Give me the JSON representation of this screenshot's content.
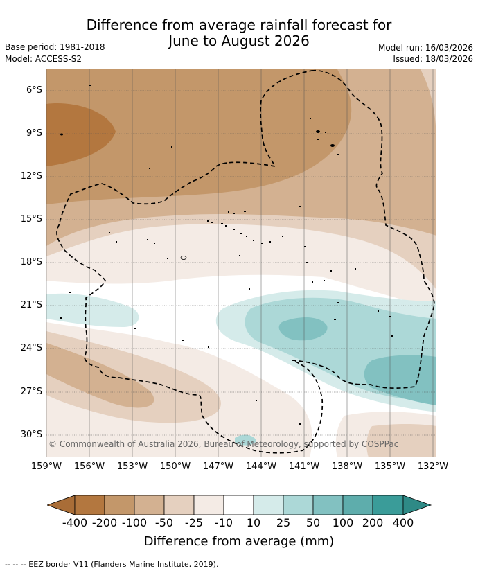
{
  "title_line1": "Difference from average rainfall forecast for",
  "title_line2": "June to August 2026",
  "base_period": "Base period: 1981-2018",
  "model": "Model: ACCESS-S2",
  "model_run": "Model run: 16/03/2026",
  "issued": "Issued: 18/03/2026",
  "lat_labels": [
    "6°S",
    "9°S",
    "12°S",
    "15°S",
    "18°S",
    "21°S",
    "24°S",
    "27°S",
    "30°S"
  ],
  "lon_labels": [
    "159°W",
    "156°W",
    "153°W",
    "150°W",
    "147°W",
    "144°W",
    "141°W",
    "138°W",
    "135°W",
    "132°W"
  ],
  "legend": {
    "title": "Difference from average (mm)",
    "bins": [
      "-400",
      "-200",
      "-100",
      "-50",
      "-25",
      "-10",
      "10",
      "25",
      "50",
      "100",
      "200",
      "400"
    ],
    "colors": [
      "#a96d37",
      "#b3773f",
      "#c3976a",
      "#d3b191",
      "#e5d0bf",
      "#f4ebe5",
      "#ffffff",
      "#d5ebea",
      "#acd8d7",
      "#82c1c1",
      "#5eadac",
      "#3a9c99",
      "#2e8a86"
    ]
  },
  "copyright": "© Commonwealth of Australia 2026, Bureau of Meteorology, supported by COSPPac",
  "footnote": "-- -- -- EEZ border V11 (Flanders Marine Institute, 2019)."
}
